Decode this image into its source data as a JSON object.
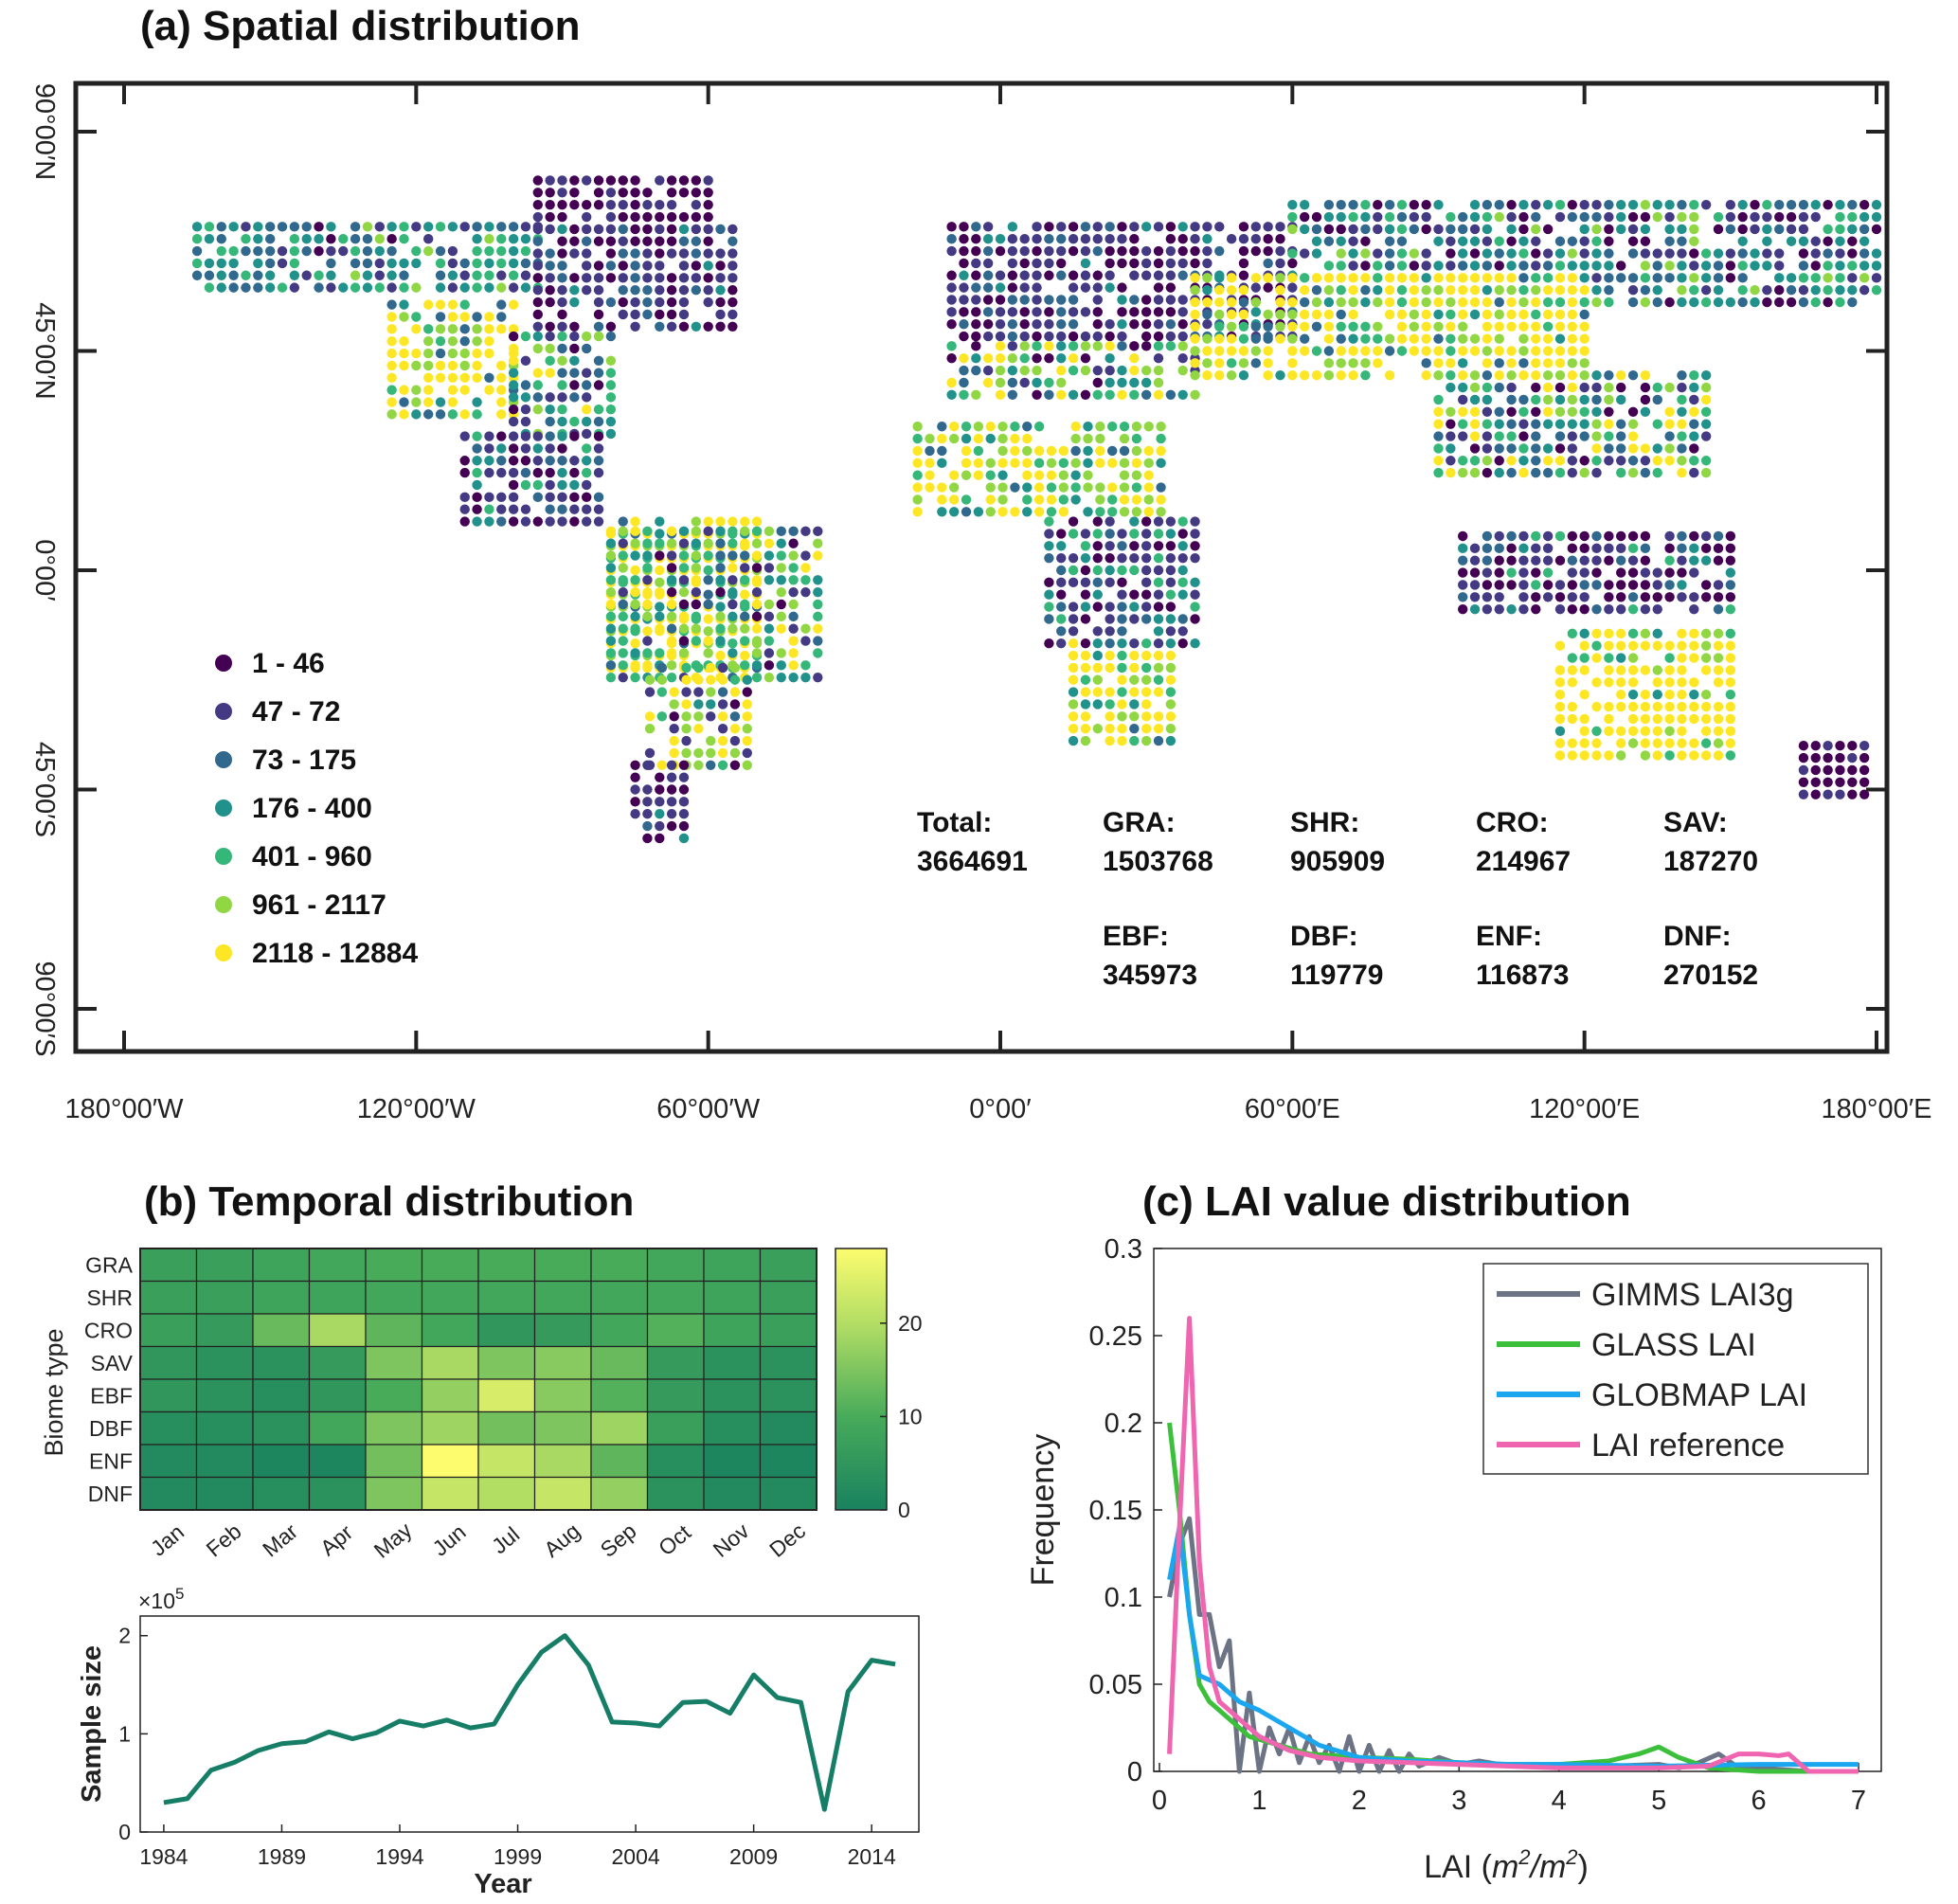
{
  "panel_a": {
    "title": "(a) Spatial distribution",
    "lat_ticks": [
      "90°00′N",
      "45°00′N",
      "0°00′",
      "45°00′S",
      "90°00′S"
    ],
    "lon_ticks": [
      "180°00′W",
      "120°00′W",
      "60°00′W",
      "0°00′",
      "60°00′E",
      "120°00′E",
      "180°00′E"
    ],
    "legend": [
      {
        "label": "1 - 46",
        "color": "#440154"
      },
      {
        "label": "47 - 72",
        "color": "#443a83"
      },
      {
        "label": "73 - 175",
        "color": "#31688e"
      },
      {
        "label": "176 - 400",
        "color": "#21918c"
      },
      {
        "label": "401 - 960",
        "color": "#35b779"
      },
      {
        "label": "961 - 2117",
        "color": "#90d743"
      },
      {
        "label": "2118 - 12884",
        "color": "#fde725"
      }
    ],
    "stats": [
      {
        "label": "Total:",
        "value": "3664691"
      },
      {
        "label": "GRA:",
        "value": "1503768"
      },
      {
        "label": "SHR:",
        "value": "905909"
      },
      {
        "label": "CRO:",
        "value": "214967"
      },
      {
        "label": "SAV:",
        "value": "187270"
      },
      {
        "label": "EBF:",
        "value": "345973"
      },
      {
        "label": "DBF:",
        "value": "119779"
      },
      {
        "label": "ENF:",
        "value": "116873"
      },
      {
        "label": "DNF:",
        "value": "270152"
      }
    ]
  },
  "chart_data": [
    {
      "type": "heatmap",
      "title": "(b) Temporal distribution",
      "ylabel": "Biome type",
      "rows": [
        "GRA",
        "SHR",
        "CRO",
        "SAV",
        "EBF",
        "DBF",
        "ENF",
        "DNF"
      ],
      "columns": [
        "Jan",
        "Feb",
        "Mar",
        "Apr",
        "May",
        "Jun",
        "Jul",
        "Aug",
        "Sep",
        "Oct",
        "Nov",
        "Dec"
      ],
      "values": [
        [
          7,
          7,
          8,
          9,
          10,
          10,
          10,
          10,
          10,
          9,
          8,
          7
        ],
        [
          7,
          7,
          8,
          8,
          9,
          9,
          9,
          9,
          9,
          9,
          8,
          7
        ],
        [
          7,
          6,
          13,
          19,
          12,
          9,
          5,
          6,
          9,
          11,
          8,
          7
        ],
        [
          5,
          4,
          4,
          6,
          15,
          19,
          15,
          16,
          13,
          6,
          4,
          4
        ],
        [
          5,
          4,
          3,
          5,
          10,
          17,
          24,
          16,
          11,
          6,
          4,
          4
        ],
        [
          3,
          3,
          4,
          9,
          15,
          18,
          14,
          15,
          18,
          7,
          3,
          2
        ],
        [
          2,
          2,
          1,
          1,
          14,
          28,
          22,
          19,
          12,
          3,
          1,
          1
        ],
        [
          2,
          2,
          3,
          4,
          15,
          22,
          20,
          22,
          17,
          4,
          2,
          2
        ]
      ],
      "colorbar": {
        "min": 0,
        "max": 28,
        "ticks": [
          "0",
          "10",
          "20"
        ]
      }
    },
    {
      "type": "line",
      "ylabel": "Sample size",
      "xlabel": "Year",
      "y_exponent": "×10",
      "y_exponent_power": "5",
      "x": [
        1984,
        1985,
        1986,
        1987,
        1988,
        1989,
        1990,
        1991,
        1992,
        1993,
        1994,
        1995,
        1996,
        1997,
        1998,
        1999,
        2000,
        2001,
        2002,
        2003,
        2004,
        2005,
        2006,
        2007,
        2008,
        2009,
        2010,
        2011,
        2012,
        2013,
        2014,
        2015
      ],
      "series": [
        {
          "name": "Sample size",
          "color": "#167e66",
          "values": [
            0.3,
            0.34,
            0.63,
            0.71,
            0.83,
            0.9,
            0.92,
            1.02,
            0.95,
            1.01,
            1.13,
            1.08,
            1.14,
            1.06,
            1.1,
            1.5,
            1.83,
            2.0,
            1.7,
            1.12,
            1.11,
            1.08,
            1.32,
            1.33,
            1.21,
            1.6,
            1.37,
            1.32,
            0.23,
            1.43,
            1.75,
            1.71
          ]
        }
      ],
      "ylim": [
        0,
        2.2
      ],
      "xlim": [
        1983,
        2016
      ],
      "x_ticks": [
        "1984",
        "1989",
        "1994",
        "1999",
        "2004",
        "2009",
        "2014"
      ],
      "y_ticks": [
        "0",
        "1",
        "2"
      ]
    },
    {
      "type": "line",
      "title": "(c) LAI value distribution",
      "xlabel": "LAI (m2/m2)",
      "xlabel_parts": {
        "pre": "LAI (",
        "a": "m",
        "a_sup": "2",
        "slash": "/",
        "b": "m",
        "b_sup": "2",
        "post": ")"
      },
      "ylabel": "Frequency",
      "xlim": [
        0,
        7
      ],
      "ylim": [
        0,
        0.3
      ],
      "x_ticks": [
        "0",
        "1",
        "2",
        "3",
        "4",
        "5",
        "6",
        "7"
      ],
      "y_ticks": [
        "0",
        "0.05",
        "0.1",
        "0.15",
        "0.2",
        "0.25",
        "0.3"
      ],
      "series": [
        {
          "name": "GIMMS LAI3g",
          "color": "#6b7385",
          "x": [
            0.1,
            0.2,
            0.3,
            0.4,
            0.5,
            0.6,
            0.7,
            0.8,
            0.9,
            1.0,
            1.1,
            1.2,
            1.3,
            1.4,
            1.5,
            1.6,
            1.7,
            1.8,
            1.9,
            2.0,
            2.1,
            2.2,
            2.3,
            2.4,
            2.5,
            2.6,
            2.8,
            3.0,
            3.2,
            3.5,
            4.0,
            4.5,
            5.0,
            5.2,
            5.4,
            5.6,
            5.8,
            6.0,
            6.5,
            7.0
          ],
          "y": [
            0.1,
            0.13,
            0.145,
            0.09,
            0.09,
            0.06,
            0.075,
            0.0,
            0.045,
            0.0,
            0.025,
            0.01,
            0.025,
            0.005,
            0.02,
            0.005,
            0.015,
            0.0,
            0.02,
            0.0,
            0.015,
            0.0,
            0.012,
            0.0,
            0.01,
            0.003,
            0.008,
            0.004,
            0.006,
            0.003,
            0.004,
            0.003,
            0.004,
            0.002,
            0.005,
            0.01,
            0.002,
            0.002,
            0.0,
            0.0
          ]
        },
        {
          "name": "GLASS LAI",
          "color": "#3cc03c",
          "x": [
            0.1,
            0.2,
            0.3,
            0.4,
            0.5,
            0.7,
            0.9,
            1.2,
            1.5,
            2.0,
            2.5,
            3.0,
            3.5,
            4.0,
            4.5,
            4.8,
            5.0,
            5.2,
            5.5,
            6.0,
            6.5,
            7.0
          ],
          "y": [
            0.2,
            0.15,
            0.09,
            0.05,
            0.04,
            0.03,
            0.02,
            0.015,
            0.01,
            0.008,
            0.007,
            0.005,
            0.004,
            0.004,
            0.006,
            0.01,
            0.014,
            0.008,
            0.002,
            0.0,
            0.0,
            0.0
          ]
        },
        {
          "name": "GLOBMAP LAI",
          "color": "#1aa7f0",
          "x": [
            0.1,
            0.2,
            0.3,
            0.4,
            0.6,
            0.8,
            1.0,
            1.3,
            1.6,
            2.0,
            2.5,
            3.0,
            3.5,
            4.0,
            5.0,
            6.0,
            6.5,
            7.0
          ],
          "y": [
            0.11,
            0.14,
            0.09,
            0.055,
            0.05,
            0.04,
            0.035,
            0.025,
            0.015,
            0.008,
            0.006,
            0.005,
            0.004,
            0.004,
            0.003,
            0.004,
            0.004,
            0.004
          ]
        },
        {
          "name": "LAI reference",
          "color": "#f065b0",
          "x": [
            0.1,
            0.2,
            0.3,
            0.4,
            0.5,
            0.6,
            0.8,
            1.0,
            1.3,
            1.6,
            2.0,
            2.5,
            3.0,
            3.5,
            4.0,
            5.0,
            5.5,
            5.8,
            6.0,
            6.2,
            6.3,
            6.5,
            7.0
          ],
          "y": [
            0.01,
            0.14,
            0.26,
            0.12,
            0.06,
            0.04,
            0.03,
            0.02,
            0.012,
            0.008,
            0.006,
            0.005,
            0.004,
            0.003,
            0.002,
            0.002,
            0.003,
            0.01,
            0.01,
            0.009,
            0.01,
            0.0,
            0.0
          ]
        }
      ]
    }
  ]
}
